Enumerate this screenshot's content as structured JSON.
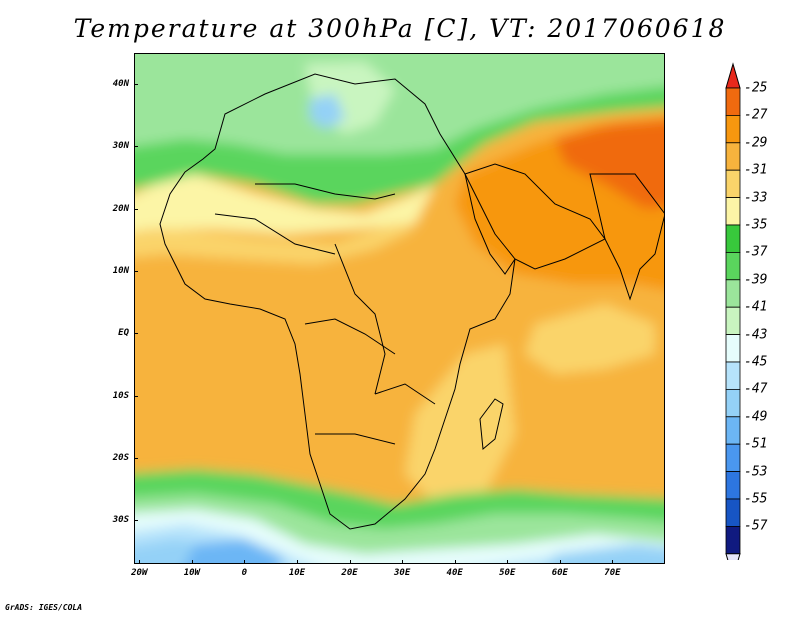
{
  "title": "Temperature at 300hPa [C], VT: 2017060618",
  "credit": "GrADS: IGES/COLA",
  "map": {
    "lat_range": [
      -37,
      45
    ],
    "lon_range": [
      -21,
      80
    ],
    "lat_labels": [
      {
        "value": 40,
        "text": "40N"
      },
      {
        "value": 30,
        "text": "30N"
      },
      {
        "value": 20,
        "text": "20N"
      },
      {
        "value": 10,
        "text": "10N"
      },
      {
        "value": 0,
        "text": "EQ"
      },
      {
        "value": -10,
        "text": "10S"
      },
      {
        "value": -20,
        "text": "20S"
      },
      {
        "value": -30,
        "text": "30S"
      }
    ],
    "lon_labels": [
      {
        "value": -20,
        "text": "20W"
      },
      {
        "value": -10,
        "text": "10W"
      },
      {
        "value": 0,
        "text": "0"
      },
      {
        "value": 10,
        "text": "10E"
      },
      {
        "value": 20,
        "text": "20E"
      },
      {
        "value": 30,
        "text": "30E"
      },
      {
        "value": 40,
        "text": "40E"
      },
      {
        "value": 50,
        "text": "50E"
      },
      {
        "value": 60,
        "text": "60E"
      },
      {
        "value": 70,
        "text": "70E"
      }
    ]
  },
  "colorbar": {
    "over_color": "#e8291c",
    "under_color": "#e6e6fa",
    "bins": [
      {
        "label": "-25",
        "color": "#f06a0f"
      },
      {
        "label": "-27",
        "color": "#f7970f"
      },
      {
        "label": "-29",
        "color": "#f7b33d"
      },
      {
        "label": "-31",
        "color": "#fad46a"
      },
      {
        "label": "-33",
        "color": "#fcf5a6"
      },
      {
        "label": "-35",
        "color": "#38c83c"
      },
      {
        "label": "-37",
        "color": "#5ad55d"
      },
      {
        "label": "-39",
        "color": "#9be59b"
      },
      {
        "label": "-41",
        "color": "#c9f5c0"
      },
      {
        "label": "-43",
        "color": "#e6fdfc"
      },
      {
        "label": "-45",
        "color": "#b6e3fb"
      },
      {
        "label": "-47",
        "color": "#94d1f7"
      },
      {
        "label": "-49",
        "color": "#6cb6f5"
      },
      {
        "label": "-51",
        "color": "#4a97ef"
      },
      {
        "label": "-53",
        "color": "#2d76e0"
      },
      {
        "label": "-55",
        "color": "#1755c4"
      },
      {
        "label": "-57",
        "color": "#101a80"
      }
    ]
  }
}
